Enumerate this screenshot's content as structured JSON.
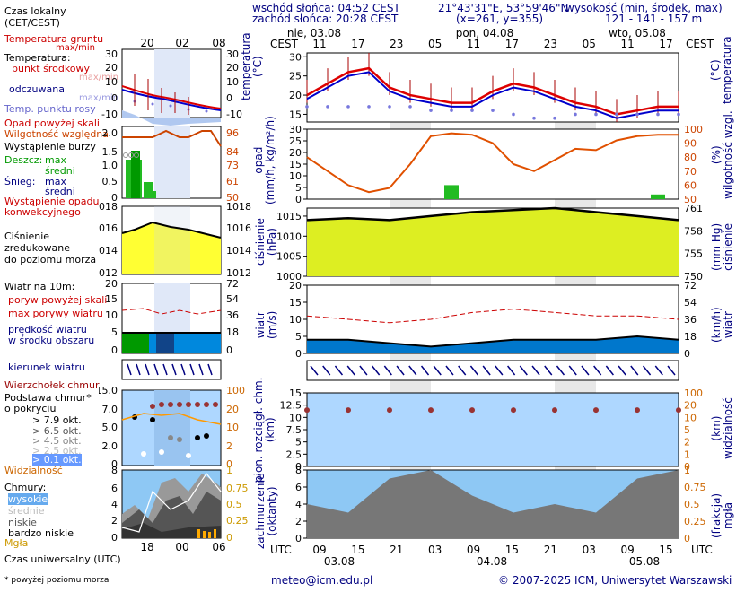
{
  "header": {
    "sunrise": "wschód słońca: 04:52 CEST",
    "sunset": "zachód słońca: 20:28 CEST",
    "coords": "21°43'31\"E, 53°59'46\"N",
    "grid": "(x=261,  y=355)",
    "elevation_title": "wysokość (min, środek, max)",
    "elevation_values": "121 - 141 - 157 m"
  },
  "time_axis": {
    "top_label": "CEST",
    "dates": [
      "nie, 03.08",
      "pon, 04.08",
      "wto, 05.08"
    ],
    "local_hours": [
      "11",
      "17",
      "23",
      "05",
      "11",
      "17",
      "23",
      "05",
      "11",
      "17"
    ],
    "utc_label": "UTC",
    "utc_hours": [
      "09",
      "15",
      "21",
      "03",
      "09",
      "15",
      "21",
      "03",
      "09",
      "15"
    ],
    "utc_dates": [
      "03.08",
      "04.08",
      "05.08"
    ]
  },
  "legend": {
    "local_time": "Czas lokalny\n(CET/CEST)",
    "local_ticks": [
      "20",
      "02",
      "08"
    ],
    "soil_temp": "Temperatura gruntu",
    "soil_sub": "max/min",
    "temperature": "Temperatura:",
    "mid_point": "punkt środkowy",
    "minmax": "max/min",
    "felt": "odczuwana",
    "dew": "Temp. punktu rosy",
    "precip_over": "Opad powyżej skali",
    "humidity": "Wilgotność względna",
    "storm": "Wystąpienie burzy",
    "rain": "Deszcz:",
    "snow": "Śnieg:",
    "max": "max",
    "mean": "średni",
    "conv": "Wystąpienie opadu\nkonwekcyjnego",
    "pressure": "Ciśnienie\nzredukowane\ndo poziomu morza",
    "wind10": "Wiatr na 10m:",
    "gust_over": "poryw powyżej skali",
    "gust_max": "max porywy wiatru",
    "wind_mean": "prędkość wiatru\nw środku obszaru",
    "wind_dir": "kierunek wiatru",
    "cloud_top": "Wierzchołek chmur",
    "cloud_base": "Podstawa chmur*\no pokryciu",
    "okt": [
      "> 7.9 okt.",
      "> 6.5 okt.",
      "> 4.5 okt.",
      "> 2.5 okt.",
      "> 0.1 okt."
    ],
    "visibility": "Widzialność",
    "clouds": "Chmury:",
    "cl_high": "wysokie",
    "cl_mid": "średnie",
    "cl_low": "niskie",
    "cl_vlow": "bardzo niskie",
    "fog": "Mgła",
    "utc": "Czas uniwersalny (UTC)",
    "utc_ticks": [
      "18",
      "00",
      "06"
    ],
    "footnote": "* powyżej poziomu morza"
  },
  "axis_labels": {
    "temp_l": "temperatura\n(°C)",
    "temp_r": "(°C)\ntemperatura",
    "precip_l": "opad\n(mm/h, kg/m²/h)",
    "precip_r": "(%)\nwilgotność wzgl.",
    "press_l": "ciśnienie\n(hPa)",
    "press_r": "(mm Hg)\nciśnienie",
    "wind_l": "wiatr\n(m/s)",
    "wind_r": "(km/h)\nwiatr",
    "base_l": "pion. rozciągł. chm.\n(km)",
    "base_r": "(km)\nwidzialność",
    "cover_l": "zachmurzenie\n(oktanty)",
    "cover_r": "(frakcja)\nmgła"
  },
  "footer": {
    "email": "meteo@icm.edu.pl",
    "copyright": "© 2007-2025 ICM, Uniwersytet Warszawski"
  },
  "chart_data": [
    {
      "type": "line",
      "title": "temperatura",
      "ylabel": "(°C)",
      "ylim": [
        13,
        31
      ],
      "yticks": [
        15,
        20,
        25,
        30
      ],
      "x": [
        0,
        3,
        6,
        9,
        12,
        15,
        18,
        21,
        24,
        27,
        30,
        33,
        36,
        39,
        42,
        45,
        48,
        51,
        54
      ],
      "series": [
        {
          "name": "punkt środkowy",
          "values": [
            20,
            23,
            26,
            27,
            22,
            20,
            19,
            18,
            18,
            21,
            23,
            22,
            20,
            18,
            17,
            15,
            16,
            17,
            17
          ]
        },
        {
          "name": "odczuwana",
          "values": [
            19,
            22,
            25,
            26,
            21,
            19,
            18,
            17,
            17,
            20,
            22,
            21,
            19,
            17,
            16,
            14,
            15,
            16,
            16
          ]
        },
        {
          "name": "temp. punktu rosy",
          "values": [
            17,
            17,
            17,
            17,
            17,
            17,
            16,
            16,
            16,
            16,
            15,
            14,
            14,
            15,
            15,
            15,
            15,
            15,
            15
          ]
        }
      ]
    },
    {
      "type": "bar+line",
      "title": "opad / wilgotność",
      "ylabel": "(mm/h)",
      "ylim": [
        0,
        30
      ],
      "yticks": [
        0,
        5,
        10,
        15,
        20,
        25,
        30
      ],
      "y2ticks": [
        50,
        60,
        70,
        80,
        90,
        100
      ],
      "x": [
        0,
        3,
        6,
        9,
        12,
        15,
        18,
        21,
        24,
        27,
        30,
        33,
        36,
        39,
        42,
        45,
        48,
        51,
        54
      ],
      "series": [
        {
          "name": "opad",
          "values": [
            0,
            0,
            0,
            0,
            0,
            0,
            0,
            6,
            0,
            0,
            0,
            0,
            0,
            0,
            0,
            0,
            0,
            2,
            0
          ]
        },
        {
          "name": "wilgotność",
          "values": [
            80,
            70,
            60,
            55,
            58,
            75,
            95,
            97,
            96,
            90,
            75,
            70,
            78,
            86,
            85,
            92,
            95,
            96,
            96
          ]
        }
      ]
    },
    {
      "type": "area",
      "title": "ciśnienie",
      "ylabel": "(hPa)",
      "ylim": [
        1000,
        1017
      ],
      "yticks": [
        1000,
        1005,
        1010,
        1015
      ],
      "y2ticks": [
        750,
        755,
        758,
        761
      ],
      "x": [
        0,
        6,
        12,
        18,
        24,
        30,
        36,
        42,
        48,
        54
      ],
      "values": [
        1014,
        1014.5,
        1014,
        1015,
        1016,
        1016.5,
        1017,
        1016,
        1015,
        1014
      ]
    },
    {
      "type": "area",
      "title": "wiatr",
      "ylabel": "(m/s)",
      "ylim": [
        0,
        20
      ],
      "yticks": [
        0,
        5,
        10,
        15,
        20
      ],
      "y2ticks": [
        0,
        18,
        36,
        54,
        72
      ],
      "x": [
        0,
        6,
        12,
        18,
        24,
        30,
        36,
        42,
        48,
        54
      ],
      "series": [
        {
          "name": "prędkość",
          "values": [
            4,
            4,
            3,
            2,
            3,
            4,
            4,
            4,
            5,
            4
          ]
        },
        {
          "name": "max porywy",
          "values": [
            11,
            10,
            9,
            10,
            12,
            13,
            12,
            11,
            11,
            10
          ]
        }
      ]
    },
    {
      "type": "scatter",
      "title": "podstawa chmur / widzialność",
      "ylabel": "(km)",
      "ylim": [
        0,
        15
      ],
      "yticks": [
        0,
        2.5,
        5,
        7.5,
        10,
        12.5,
        15
      ],
      "y2ticks": [
        0,
        1,
        2,
        5,
        10,
        20,
        100
      ],
      "x": [
        0,
        6,
        12,
        18,
        24,
        30,
        36,
        42,
        48,
        54
      ],
      "values": [
        11.5,
        11.5,
        11.5,
        11.5,
        11.5,
        11.5,
        11.5,
        11.5,
        11.5,
        11.5
      ]
    },
    {
      "type": "area",
      "title": "zachmurzenie",
      "ylabel": "(oktanty)",
      "ylim": [
        0,
        8
      ],
      "yticks": [
        0,
        2,
        4,
        6,
        8
      ],
      "y2ticks": [
        0,
        0.25,
        0.5,
        0.75,
        1
      ],
      "x": [
        0,
        6,
        12,
        18,
        24,
        30,
        36,
        42,
        48,
        54
      ],
      "values": [
        4,
        3,
        7,
        8,
        5,
        3,
        4,
        3,
        7,
        8
      ]
    }
  ]
}
